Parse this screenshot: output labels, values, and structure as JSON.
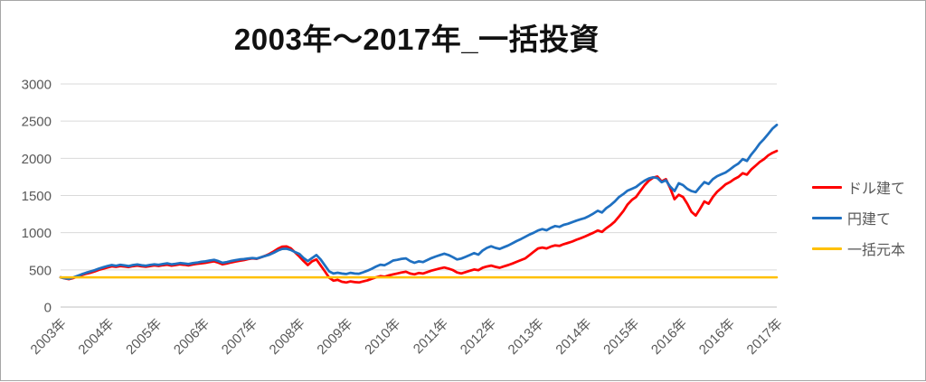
{
  "palette": {
    "frame_border": "#a6a6a6",
    "gridline": "#d9d9d9",
    "axis_line": "#bfbfbf",
    "axis_text": "#595959",
    "title_text": "#111111",
    "series_usd": "#fe0000",
    "series_jpy": "#1f70c1",
    "series_principal": "#ffc000"
  },
  "chart_data": {
    "type": "line",
    "title": "2003年〜2017年_一括投資",
    "xlabel": "",
    "ylabel": "",
    "ylim": [
      0,
      3000
    ],
    "y_ticks": [
      0,
      500,
      1000,
      1500,
      2000,
      2500,
      3000
    ],
    "grid": true,
    "legend_position": "right",
    "x_tick_labels": [
      "2003年",
      "2004年",
      "2005年",
      "2006年",
      "2007年",
      "2008年",
      "2009年",
      "2010年",
      "2011年",
      "2012年",
      "2013年",
      "2014年",
      "2015年",
      "2016年",
      "2016年",
      "2017年"
    ],
    "x_unit": "monthly points, Jan 2003 - Jan 2017",
    "series": [
      {
        "name": "ドル建て",
        "color": "#fe0000",
        "values": [
          400,
          385,
          375,
          390,
          412,
          430,
          448,
          462,
          478,
          500,
          515,
          532,
          548,
          540,
          552,
          545,
          538,
          550,
          558,
          548,
          542,
          552,
          560,
          553,
          562,
          570,
          558,
          565,
          575,
          568,
          560,
          572,
          580,
          588,
          595,
          605,
          615,
          598,
          575,
          585,
          600,
          612,
          622,
          632,
          645,
          655,
          648,
          668,
          690,
          715,
          748,
          785,
          812,
          815,
          790,
          735,
          680,
          620,
          565,
          615,
          640,
          560,
          480,
          395,
          355,
          365,
          340,
          330,
          345,
          335,
          330,
          345,
          360,
          380,
          400,
          415,
          408,
          425,
          440,
          452,
          465,
          475,
          450,
          440,
          458,
          450,
          470,
          490,
          505,
          520,
          532,
          518,
          498,
          465,
          452,
          470,
          488,
          505,
          495,
          528,
          545,
          558,
          540,
          528,
          548,
          565,
          585,
          608,
          632,
          655,
          700,
          745,
          788,
          800,
          788,
          812,
          830,
          822,
          845,
          862,
          880,
          905,
          925,
          948,
          975,
          1000,
          1030,
          1010,
          1060,
          1100,
          1150,
          1220,
          1290,
          1380,
          1440,
          1480,
          1560,
          1640,
          1700,
          1740,
          1755,
          1690,
          1720,
          1600,
          1450,
          1510,
          1480,
          1390,
          1280,
          1230,
          1320,
          1420,
          1390,
          1480,
          1550,
          1600,
          1650,
          1680,
          1720,
          1750,
          1800,
          1780,
          1850,
          1900,
          1950,
          1990,
          2040,
          2075,
          2100
        ]
      },
      {
        "name": "円建て",
        "color": "#1f70c1",
        "values": [
          400,
          388,
          380,
          398,
          420,
          442,
          462,
          478,
          495,
          518,
          535,
          552,
          565,
          555,
          568,
          560,
          552,
          565,
          572,
          562,
          556,
          566,
          575,
          568,
          578,
          588,
          575,
          582,
          592,
          585,
          578,
          590,
          598,
          608,
          615,
          625,
          635,
          618,
          595,
          605,
          620,
          630,
          640,
          645,
          652,
          660,
          652,
          670,
          688,
          705,
          730,
          760,
          782,
          785,
          768,
          738,
          715,
          660,
          618,
          660,
          700,
          640,
          560,
          480,
          450,
          462,
          450,
          445,
          460,
          450,
          448,
          468,
          490,
          515,
          545,
          570,
          562,
          592,
          625,
          635,
          648,
          655,
          618,
          595,
          615,
          605,
          632,
          658,
          680,
          700,
          718,
          700,
          672,
          640,
          652,
          675,
          700,
          725,
          705,
          760,
          795,
          818,
          795,
          782,
          805,
          828,
          858,
          888,
          915,
          945,
          975,
          1000,
          1030,
          1048,
          1032,
          1065,
          1090,
          1078,
          1105,
          1120,
          1140,
          1162,
          1180,
          1198,
          1225,
          1258,
          1295,
          1272,
          1330,
          1370,
          1420,
          1480,
          1520,
          1565,
          1590,
          1615,
          1660,
          1700,
          1730,
          1745,
          1735,
          1680,
          1705,
          1620,
          1560,
          1665,
          1640,
          1590,
          1560,
          1545,
          1615,
          1680,
          1655,
          1720,
          1760,
          1785,
          1810,
          1850,
          1895,
          1930,
          1990,
          1965,
          2050,
          2120,
          2200,
          2260,
          2330,
          2400,
          2450
        ]
      },
      {
        "name": "一括元本",
        "color": "#ffc000",
        "values": [
          400,
          400
        ]
      }
    ]
  },
  "legend": {
    "items": [
      "ドル建て",
      "円建て",
      "一括元本"
    ]
  }
}
